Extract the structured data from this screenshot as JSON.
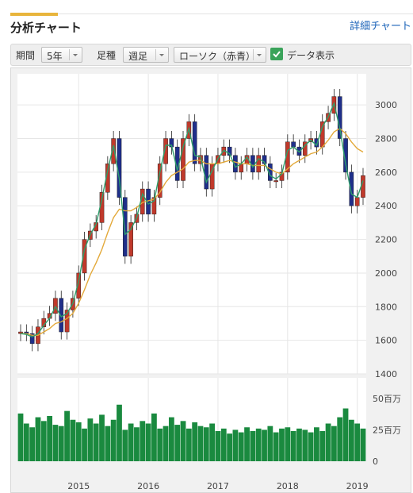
{
  "header": {
    "title": "分析チャート",
    "detail_link": "詳細チャート"
  },
  "toolbar": {
    "period_label": "期間",
    "period_value": "5年",
    "foot_label": "足種",
    "foot_value": "週足",
    "style_value": "ローソク（赤青）",
    "show_data_label": "データ表示",
    "show_data_checked": true
  },
  "colors": {
    "up_candle": "#c0392b",
    "down_candle": "#1f2f8a",
    "ma_short": "#2e9e6b",
    "ma_long": "#e3a93a",
    "volume": "#1a8a3f",
    "accent": "#e8b53c",
    "link": "#1a62b8"
  },
  "chart_data": [
    {
      "type": "candlestick",
      "x": [
        "2014-03",
        "2014-04",
        "2014-05",
        "2014-06",
        "2014-07",
        "2014-08",
        "2014-09",
        "2014-10",
        "2014-11",
        "2014-12",
        "2015-01",
        "2015-02",
        "2015-03",
        "2015-04",
        "2015-05",
        "2015-06",
        "2015-07",
        "2015-08",
        "2015-09",
        "2015-10",
        "2015-11",
        "2015-12",
        "2016-01",
        "2016-02",
        "2016-03",
        "2016-04",
        "2016-05",
        "2016-06",
        "2016-07",
        "2016-08",
        "2016-09",
        "2016-10",
        "2016-11",
        "2016-12",
        "2017-01",
        "2017-02",
        "2017-03",
        "2017-04",
        "2017-05",
        "2017-06",
        "2017-07",
        "2017-08",
        "2017-09",
        "2017-10",
        "2017-11",
        "2017-12",
        "2018-01",
        "2018-02",
        "2018-03",
        "2018-04",
        "2018-05",
        "2018-06",
        "2018-07",
        "2018-08",
        "2018-09",
        "2018-10",
        "2018-11",
        "2018-12",
        "2019-01",
        "2019-02"
      ],
      "close": [
        1650,
        1640,
        1580,
        1680,
        1730,
        1760,
        1850,
        1650,
        1780,
        1850,
        2000,
        2200,
        2250,
        2300,
        2480,
        2650,
        2800,
        2450,
        2100,
        2300,
        2350,
        2500,
        2350,
        2450,
        2650,
        2800,
        2750,
        2550,
        2800,
        2900,
        2650,
        2700,
        2500,
        2650,
        2700,
        2750,
        2700,
        2600,
        2650,
        2700,
        2600,
        2700,
        2650,
        2550,
        2550,
        2600,
        2780,
        2750,
        2700,
        2780,
        2800,
        2750,
        2900,
        2950,
        3050,
        2800,
        2600,
        2400,
        2450,
        2580
      ],
      "moving_average_short": [
        1640,
        1635,
        1620,
        1640,
        1690,
        1730,
        1800,
        1740,
        1760,
        1820,
        1950,
        2140,
        2230,
        2290,
        2440,
        2610,
        2760,
        2560,
        2230,
        2260,
        2330,
        2470,
        2410,
        2430,
        2600,
        2760,
        2760,
        2610,
        2750,
        2860,
        2700,
        2690,
        2540,
        2610,
        2680,
        2730,
        2710,
        2630,
        2650,
        2690,
        2630,
        2680,
        2660,
        2580,
        2560,
        2590,
        2730,
        2750,
        2720,
        2760,
        2790,
        2760,
        2870,
        2930,
        3010,
        2860,
        2650,
        2470,
        2450,
        2550
      ],
      "moving_average_long": [
        1640,
        1640,
        1630,
        1630,
        1650,
        1670,
        1700,
        1710,
        1730,
        1760,
        1820,
        1900,
        1990,
        2060,
        2140,
        2240,
        2330,
        2380,
        2370,
        2370,
        2390,
        2420,
        2430,
        2440,
        2480,
        2540,
        2580,
        2600,
        2620,
        2660,
        2670,
        2670,
        2650,
        2650,
        2650,
        2660,
        2670,
        2660,
        2650,
        2650,
        2640,
        2640,
        2640,
        2620,
        2600,
        2590,
        2620,
        2650,
        2670,
        2690,
        2710,
        2720,
        2750,
        2790,
        2840,
        2860,
        2830,
        2780,
        2740,
        2720
      ],
      "yticks": [
        "1400",
        "1600",
        "1800",
        "2000",
        "2200",
        "2400",
        "2600",
        "2800",
        "3000"
      ],
      "ylim": [
        1400,
        3100
      ],
      "xticks": [
        "2015",
        "2016",
        "2017",
        "2018",
        "2019"
      ],
      "grid": true
    },
    {
      "type": "bar",
      "name": "volume",
      "values": [
        38,
        30,
        27,
        35,
        32,
        36,
        29,
        28,
        40,
        33,
        31,
        26,
        34,
        30,
        37,
        28,
        33,
        45,
        25,
        30,
        27,
        32,
        30,
        38,
        26,
        28,
        35,
        29,
        32,
        26,
        31,
        28,
        27,
        30,
        24,
        26,
        22,
        25,
        23,
        27,
        24,
        26,
        25,
        28,
        23,
        26,
        27,
        24,
        26,
        25,
        23,
        27,
        24,
        30,
        28,
        35,
        42,
        33,
        30,
        26
      ],
      "yticks": [
        "0",
        "25百万",
        "50百万"
      ],
      "ylim": [
        0,
        60
      ]
    }
  ]
}
